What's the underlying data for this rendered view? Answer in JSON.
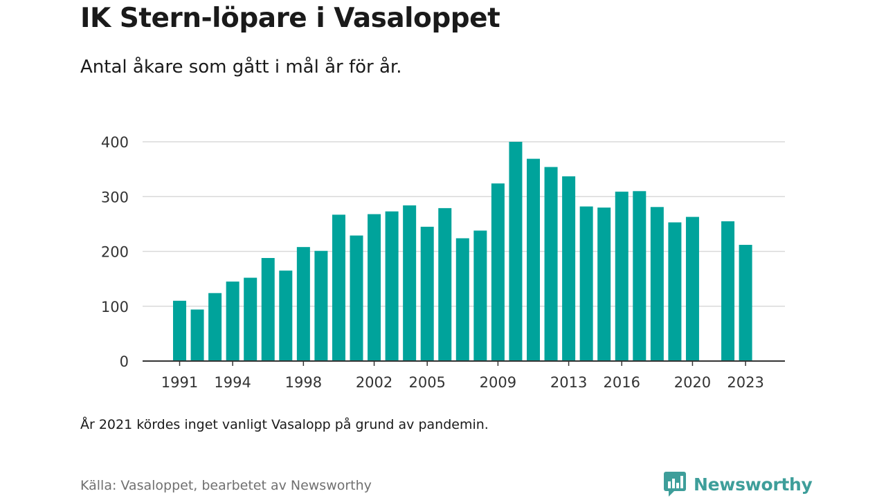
{
  "header": {
    "title": "IK Stern-löpare i Vasaloppet",
    "subtitle": "Antal åkare som gått i mål år för år."
  },
  "footer": {
    "note": "År 2021 kördes inget vanligt Vasalopp på grund av pandemin.",
    "source": "Källa: Vasaloppet, bearbetet av Newsworthy",
    "logo_text": "Newsworthy",
    "logo_icon": "newsworthy-logo-icon"
  },
  "colors": {
    "bar": "#00a39b",
    "grid": "#d9d9d9",
    "axis": "#333333",
    "brand": "#3e9e9a"
  },
  "chart_data": {
    "type": "bar",
    "title": "IK Stern-löpare i Vasaloppet",
    "subtitle": "Antal åkare som gått i mål år för år.",
    "xlabel": "",
    "ylabel": "",
    "ylim": [
      0,
      400
    ],
    "yticks": [
      0,
      100,
      200,
      300,
      400
    ],
    "xtick_labels": [
      "1991",
      "1994",
      "1998",
      "2002",
      "2005",
      "2009",
      "2013",
      "2016",
      "2020",
      "2023"
    ],
    "grid": true,
    "legend": "none",
    "categories": [
      1991,
      1992,
      1993,
      1994,
      1995,
      1996,
      1997,
      1998,
      1999,
      2000,
      2001,
      2002,
      2003,
      2004,
      2005,
      2006,
      2007,
      2008,
      2009,
      2010,
      2011,
      2012,
      2013,
      2014,
      2015,
      2016,
      2017,
      2018,
      2019,
      2020,
      2021,
      2022,
      2023
    ],
    "values": [
      110,
      94,
      124,
      145,
      152,
      188,
      165,
      208,
      201,
      267,
      229,
      268,
      273,
      284,
      245,
      279,
      224,
      238,
      324,
      400,
      369,
      354,
      337,
      282,
      280,
      309,
      310,
      281,
      253,
      263,
      null,
      255,
      212
    ]
  }
}
